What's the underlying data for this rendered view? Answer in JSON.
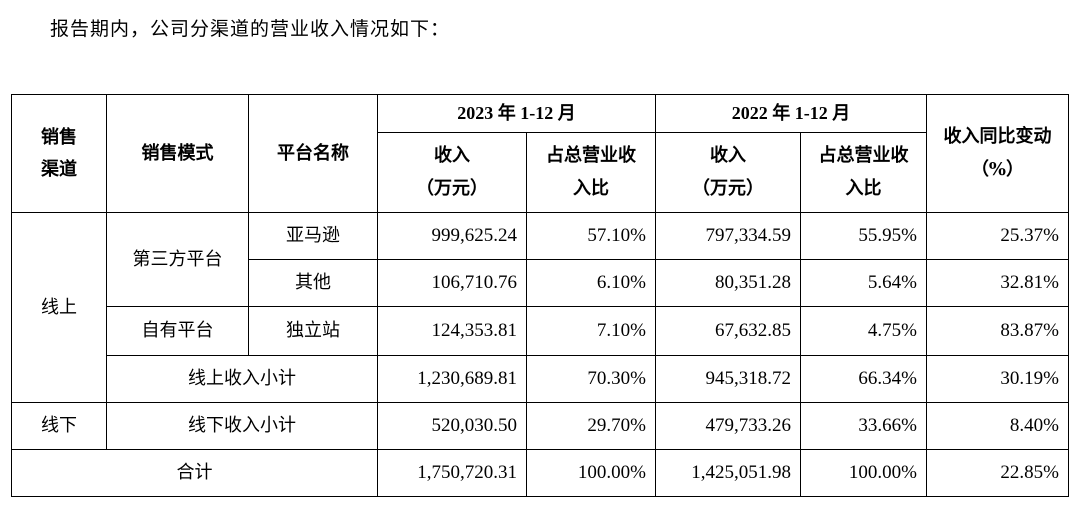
{
  "intro": "报告期内，公司分渠道的营业收入情况如下：",
  "header": {
    "channel": "销售渠道",
    "mode": "销售模式",
    "platform": "平台名称",
    "year2023": "2023 年 1-12 月",
    "year2022": "2022 年 1-12 月",
    "revenue_label": "收入",
    "revenue_unit": "（万元）",
    "share_line1": "占总营业收",
    "share_line2": "入比",
    "yoy": "收入同比变动（%）"
  },
  "rows": {
    "amazon": {
      "channel": "线上",
      "mode": "第三方平台",
      "platform": "亚马逊",
      "rev2023": "999,625.24",
      "share2023": "57.10%",
      "rev2022": "797,334.59",
      "share2022": "55.95%",
      "yoy": "25.37%"
    },
    "other": {
      "platform": "其他",
      "rev2023": "106,710.76",
      "share2023": "6.10%",
      "rev2022": "80,351.28",
      "share2022": "5.64%",
      "yoy": "32.81%"
    },
    "own": {
      "mode": "自有平台",
      "platform": "独立站",
      "rev2023": "124,353.81",
      "share2023": "7.10%",
      "rev2022": "67,632.85",
      "share2022": "4.75%",
      "yoy": "83.87%"
    },
    "online_subtotal": {
      "label": "线上收入小计",
      "rev2023": "1,230,689.81",
      "share2023": "70.30%",
      "rev2022": "945,318.72",
      "share2022": "66.34%",
      "yoy": "30.19%"
    },
    "offline": {
      "channel": "线下",
      "label": "线下收入小计",
      "rev2023": "520,030.50",
      "share2023": "29.70%",
      "rev2022": "479,733.26",
      "share2022": "33.66%",
      "yoy": "8.40%"
    },
    "total": {
      "label": "合计",
      "rev2023": "1,750,720.31",
      "share2023": "100.00%",
      "rev2022": "1,425,051.98",
      "share2022": "100.00%",
      "yoy": "22.85%"
    }
  }
}
